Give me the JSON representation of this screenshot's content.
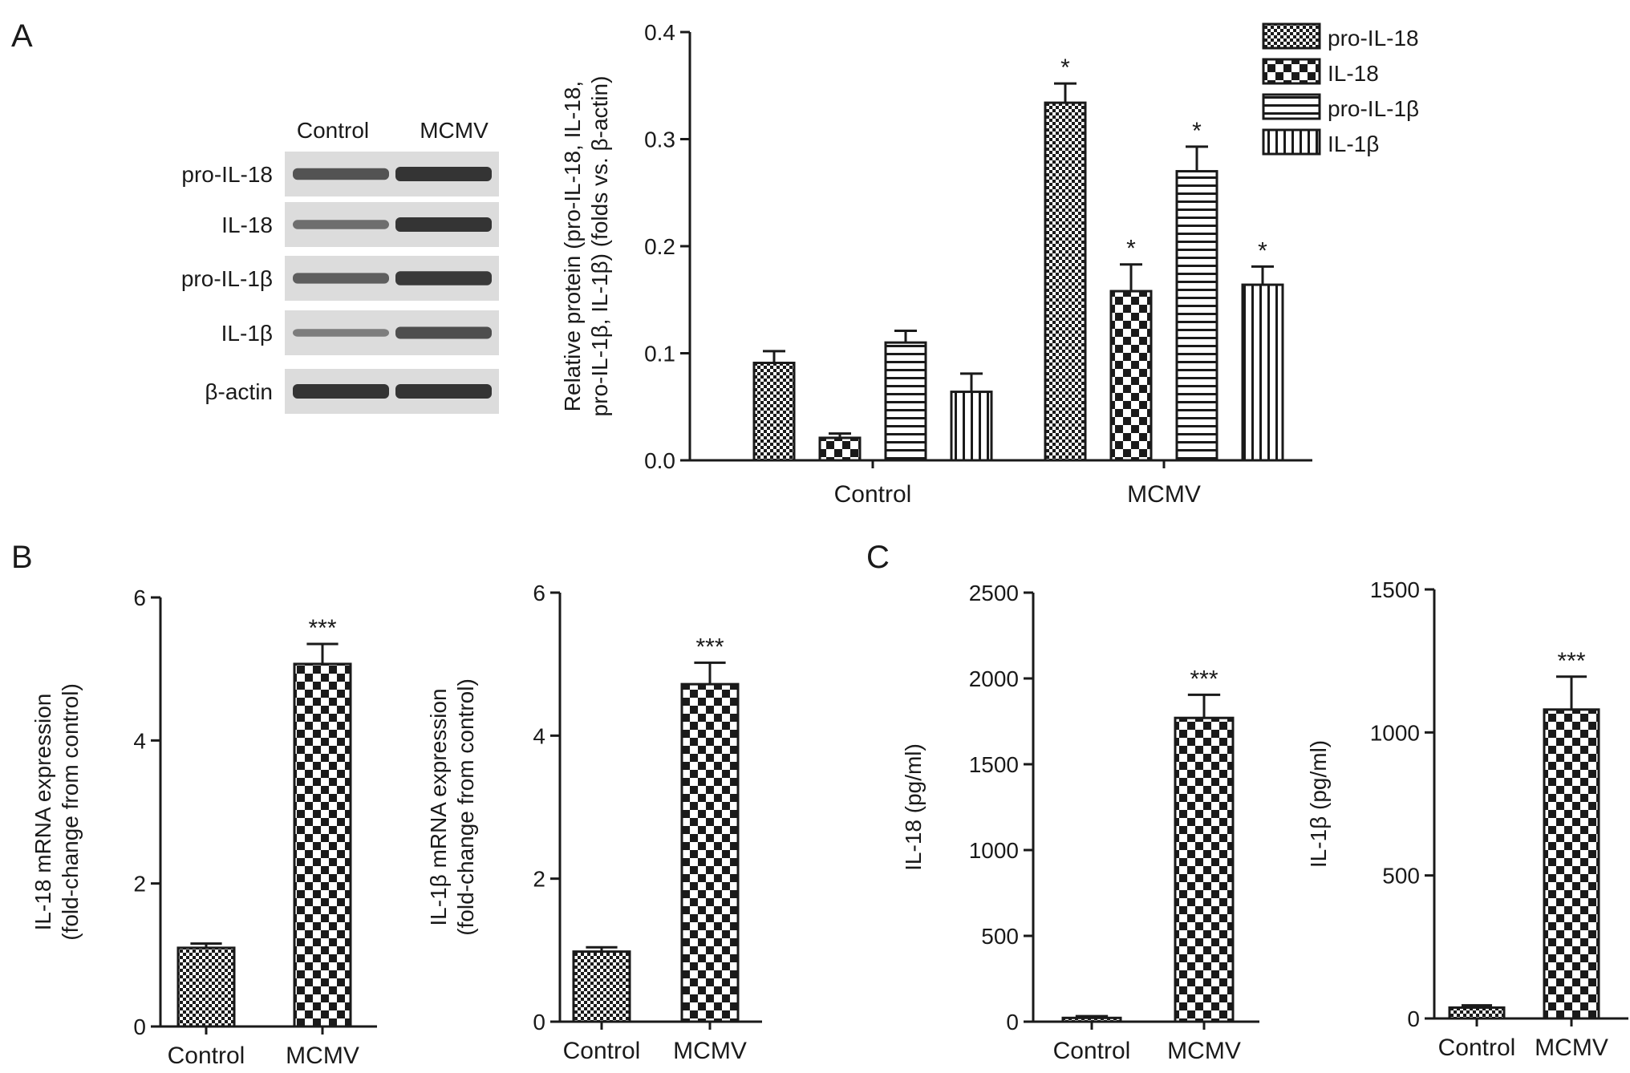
{
  "panels": {
    "A": "A",
    "B": "B",
    "C": "C"
  },
  "colors": {
    "ink": "#1a1a1a",
    "background": "#ffffff",
    "blot_bg": "#dcdcdc",
    "band": "#2a2a2a"
  },
  "blot": {
    "columns": [
      "Control",
      "MCMV"
    ],
    "rows": [
      "pro-IL-18",
      "IL-18",
      "pro-IL-1β",
      "IL-1β",
      "β-actin"
    ]
  },
  "chart_data": [
    {
      "id": "A",
      "type": "bar",
      "categories": [
        "Control",
        "MCMV"
      ],
      "ylabel_lines": [
        "Relative protein (pro-IL-18, IL-18,",
        "pro-IL-1β, IL-1β) (folds vs. β-actin)"
      ],
      "ylim": [
        0,
        0.4
      ],
      "yticks": [
        "0.0",
        "0.1",
        "0.2",
        "0.3",
        "0.4"
      ],
      "series": [
        {
          "name": "pro-IL-18",
          "pattern": "checker-fine",
          "values": [
            0.091,
            0.334
          ],
          "errors": [
            0.011,
            0.018
          ],
          "sig": [
            "",
            "*"
          ]
        },
        {
          "name": "IL-18",
          "pattern": "checker-coarse",
          "values": [
            0.021,
            0.158
          ],
          "errors": [
            0.004,
            0.025
          ],
          "sig": [
            "",
            "*"
          ]
        },
        {
          "name": "pro-IL-1β",
          "pattern": "hlines",
          "values": [
            0.11,
            0.27
          ],
          "errors": [
            0.011,
            0.023
          ],
          "sig": [
            "",
            "*"
          ]
        },
        {
          "name": "IL-1β",
          "pattern": "vlines",
          "values": [
            0.064,
            0.164
          ],
          "errors": [
            0.017,
            0.017
          ],
          "sig": [
            "",
            "*"
          ]
        }
      ],
      "legend_position": "top-right"
    },
    {
      "id": "B1",
      "type": "bar",
      "categories": [
        "Control",
        "MCMV"
      ],
      "ylabel_lines": [
        "IL-18 mRNA expression",
        "(fold-change from control)"
      ],
      "ylim": [
        0,
        6
      ],
      "yticks": [
        "0",
        "2",
        "4",
        "6"
      ],
      "series": [
        {
          "values": [
            1.1,
            5.07
          ],
          "errors": [
            0.06,
            0.28
          ],
          "patterns": [
            "checker-fine",
            "checker-coarse"
          ],
          "sig": [
            "",
            "***"
          ]
        }
      ]
    },
    {
      "id": "B2",
      "type": "bar",
      "categories": [
        "Control",
        "MCMV"
      ],
      "ylabel_lines": [
        "IL-1β mRNA expression",
        "(fold-change from control)"
      ],
      "ylim": [
        0,
        6
      ],
      "yticks": [
        "0",
        "2",
        "4",
        "6"
      ],
      "series": [
        {
          "values": [
            0.98,
            4.72
          ],
          "errors": [
            0.06,
            0.3
          ],
          "patterns": [
            "checker-fine",
            "checker-coarse"
          ],
          "sig": [
            "",
            "***"
          ]
        }
      ]
    },
    {
      "id": "C1",
      "type": "bar",
      "categories": [
        "Control",
        "MCMV"
      ],
      "ylabel_lines": [
        "IL-18 (pg/ml)"
      ],
      "ylim": [
        0,
        2500
      ],
      "yticks": [
        "0",
        "500",
        "1000",
        "1500",
        "2000",
        "2500"
      ],
      "series": [
        {
          "values": [
            22,
            1770
          ],
          "errors": [
            10,
            135
          ],
          "patterns": [
            "checker-fine",
            "checker-coarse"
          ],
          "sig": [
            "",
            "***"
          ]
        }
      ]
    },
    {
      "id": "C2",
      "type": "bar",
      "categories": [
        "Control",
        "MCMV"
      ],
      "ylabel_lines": [
        "IL-1β (pg/ml)"
      ],
      "ylim": [
        0,
        1500
      ],
      "yticks": [
        "0",
        "500",
        "1000",
        "1500"
      ],
      "series": [
        {
          "values": [
            38,
            1080
          ],
          "errors": [
            8,
            115
          ],
          "patterns": [
            "checker-fine",
            "checker-coarse"
          ],
          "sig": [
            "",
            "***"
          ]
        }
      ]
    }
  ]
}
